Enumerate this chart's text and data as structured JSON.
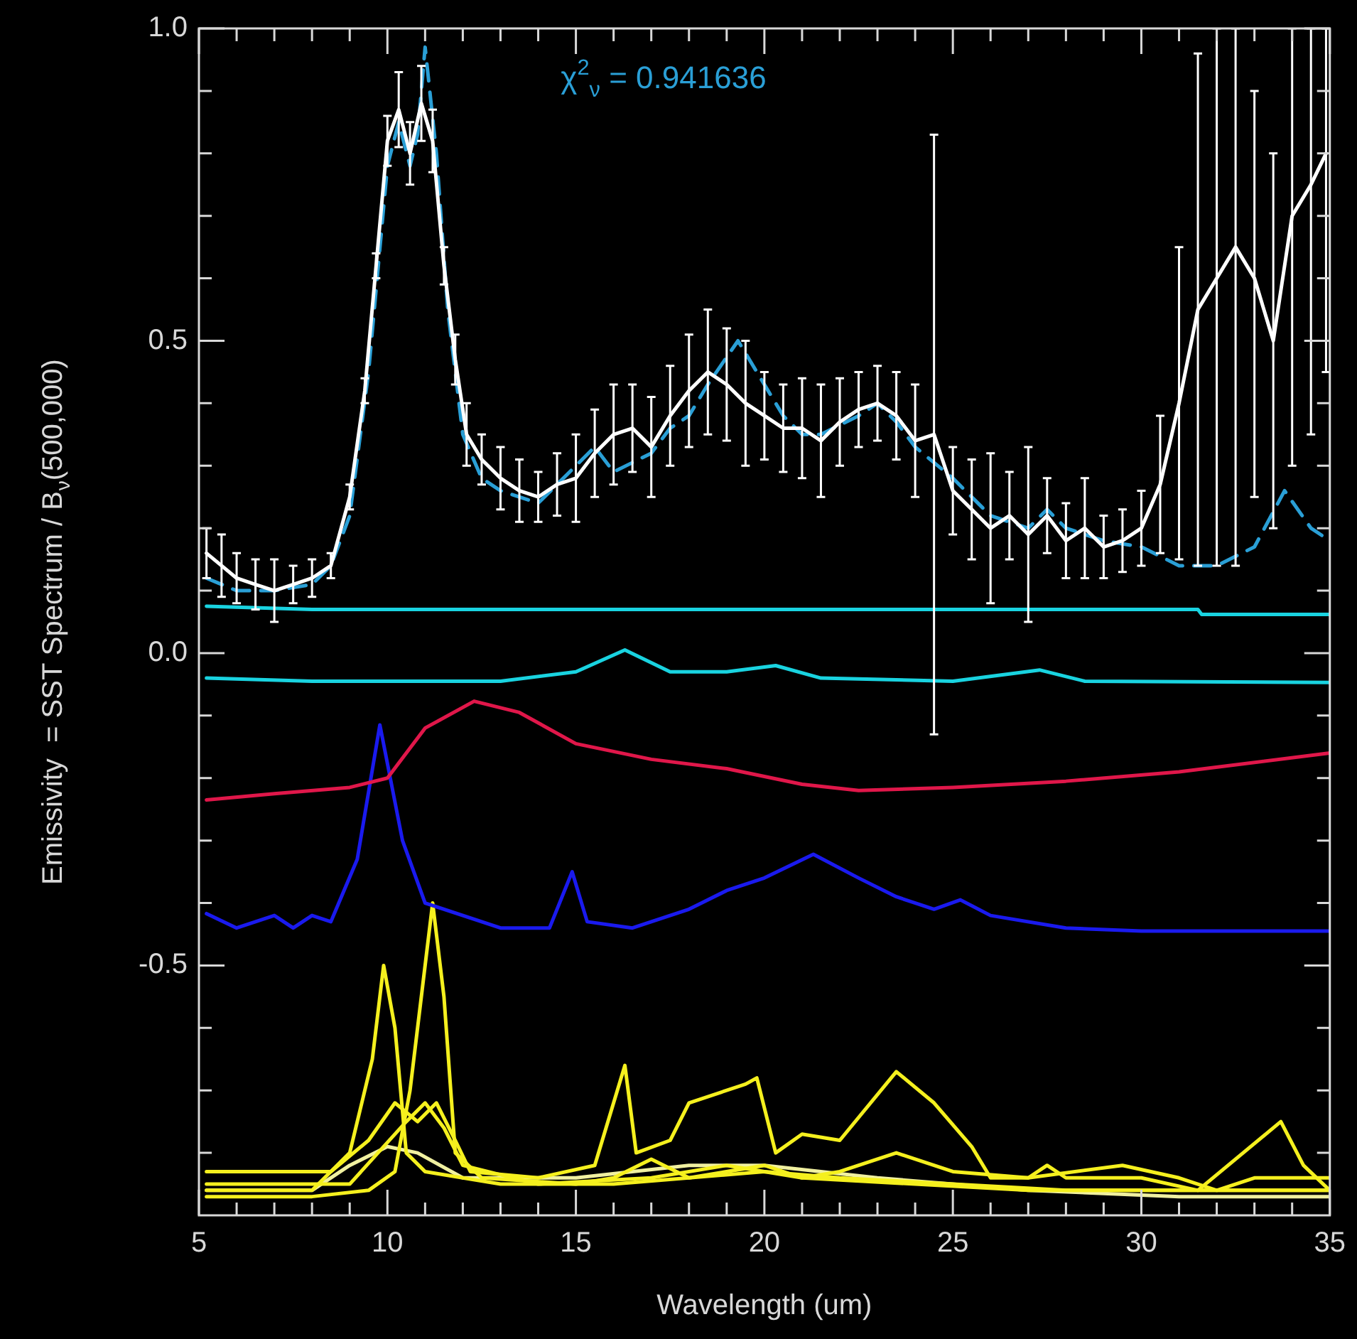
{
  "chart_data": {
    "type": "line",
    "xlabel": "Wavelength (um)",
    "ylabel": "Emissivity  = SST Spectrum / B$_{ν}$(500,000)",
    "annotations": [
      "χ$^{2}$$_{ν}$ = 0.941636"
    ],
    "xlim": [
      5,
      35
    ],
    "ylim": [
      -0.9,
      1.0
    ],
    "xticks": [
      5,
      {
        "value": 6,
        "label": null
      },
      {
        "value": 7,
        "label": null
      },
      {
        "value": 8,
        "label": null
      },
      {
        "value": 9,
        "label": null
      },
      10,
      {
        "value": 11,
        "label": null
      },
      {
        "value": 12,
        "label": null
      },
      {
        "value": 13,
        "label": null
      },
      {
        "value": 14,
        "label": null
      },
      15,
      {
        "value": 16,
        "label": null
      },
      {
        "value": 17,
        "label": null
      },
      {
        "value": 18,
        "label": null
      },
      {
        "value": 19,
        "label": null
      },
      20,
      {
        "value": 21,
        "label": null
      },
      {
        "value": 22,
        "label": null
      },
      {
        "value": 23,
        "label": null
      },
      {
        "value": 24,
        "label": null
      },
      25,
      {
        "value": 26,
        "label": null
      },
      {
        "value": 27,
        "label": null
      },
      {
        "value": 28,
        "label": null
      },
      {
        "value": 29,
        "label": null
      },
      30,
      {
        "value": 31,
        "label": null
      },
      {
        "value": 32,
        "label": null
      },
      {
        "value": 33,
        "label": null
      },
      {
        "value": 34,
        "label": null
      },
      35
    ],
    "yticks": [
      {
        "value": -0.8,
        "label": null
      },
      {
        "value": -0.7,
        "label": null
      },
      {
        "value": -0.6,
        "label": null
      },
      {
        "value": -0.5,
        "label": "-0.5"
      },
      {
        "value": -0.4,
        "label": null
      },
      {
        "value": -0.3,
        "label": null
      },
      {
        "value": -0.2,
        "label": null
      },
      {
        "value": -0.1,
        "label": null
      },
      {
        "value": 0,
        "label": "0.0"
      },
      {
        "value": 0.1,
        "label": null
      },
      {
        "value": 0.2,
        "label": null
      },
      {
        "value": 0.3,
        "label": null
      },
      {
        "value": 0.4,
        "label": null
      },
      {
        "value": 0.5,
        "label": "0.5"
      },
      {
        "value": 0.6,
        "label": null
      },
      {
        "value": 0.7,
        "label": null
      },
      {
        "value": 0.8,
        "label": null
      },
      {
        "value": 0.9,
        "label": null
      },
      {
        "value": 1,
        "label": "1.0"
      }
    ],
    "grid": false,
    "legend": false,
    "marker": "none",
    "series": [
      {
        "color": "#ffffff",
        "x": [
          5.2,
          5.6,
          6.0,
          6.5,
          7.0,
          7.5,
          8.0,
          8.5,
          9.0,
          9.4,
          9.7,
          10.0,
          10.3,
          10.6,
          10.9,
          11.2,
          11.5,
          11.8,
          12.1,
          12.5,
          13.0,
          13.5,
          14.0,
          14.5,
          15.0,
          15.5,
          16.0,
          16.5,
          17.0,
          17.5,
          18.0,
          18.5,
          19.0,
          19.5,
          20.0,
          20.5,
          21.0,
          21.5,
          22.0,
          22.5,
          23.0,
          23.5,
          24.0,
          24.5,
          25.0,
          25.5,
          26.0,
          26.5,
          27.0,
          27.5,
          28.0,
          28.5,
          29.0,
          29.5,
          30.0,
          30.5,
          31.0,
          31.5,
          32.0,
          32.5,
          33.0,
          33.5,
          34.0,
          34.5,
          34.9
        ],
        "values": [
          0.16,
          0.14,
          0.12,
          0.11,
          0.1,
          0.11,
          0.12,
          0.14,
          0.25,
          0.42,
          0.62,
          0.82,
          0.87,
          0.8,
          0.88,
          0.82,
          0.62,
          0.47,
          0.35,
          0.31,
          0.28,
          0.26,
          0.25,
          0.27,
          0.28,
          0.32,
          0.35,
          0.36,
          0.33,
          0.38,
          0.42,
          0.45,
          0.43,
          0.4,
          0.38,
          0.36,
          0.36,
          0.34,
          0.37,
          0.39,
          0.4,
          0.38,
          0.34,
          0.35,
          0.26,
          0.23,
          0.2,
          0.22,
          0.19,
          0.22,
          0.18,
          0.2,
          0.17,
          0.18,
          0.2,
          0.27,
          0.4,
          0.55,
          0.6,
          0.65,
          0.6,
          0.5,
          0.7,
          0.75,
          0.8
        ],
        "errors": [
          0.04,
          0.05,
          0.04,
          0.04,
          0.05,
          0.03,
          0.03,
          0.02,
          0.02,
          0.02,
          0.02,
          0.04,
          0.06,
          0.05,
          0.06,
          0.05,
          0.03,
          0.04,
          0.05,
          0.04,
          0.05,
          0.05,
          0.04,
          0.05,
          0.07,
          0.07,
          0.08,
          0.07,
          0.08,
          0.08,
          0.09,
          0.1,
          0.09,
          0.1,
          0.07,
          0.07,
          0.08,
          0.09,
          0.07,
          0.06,
          0.06,
          0.07,
          0.09,
          0.48,
          0.07,
          0.08,
          0.12,
          0.07,
          0.14,
          0.06,
          0.06,
          0.08,
          0.05,
          0.05,
          0.06,
          0.11,
          0.25,
          0.41,
          [
            0.14,
            1.0
          ],
          [
            0.14,
            1.0
          ],
          [
            0.25,
            0.9
          ],
          [
            0.2,
            0.8
          ],
          [
            0.3,
            1.0
          ],
          [
            0.35,
            1.0
          ],
          [
            0.45,
            1.0
          ]
        ]
      },
      {
        "color": "#2a9fd6",
        "line_style": "dashed",
        "x": [
          5.2,
          6,
          7,
          8,
          8.5,
          9,
          9.5,
          10,
          10.3,
          10.6,
          10.8,
          11.0,
          11.3,
          11.6,
          12,
          12.5,
          13,
          14,
          15,
          15.5,
          16,
          17,
          17.5,
          18,
          18.5,
          19.3,
          19.8,
          20.5,
          21,
          21.5,
          22.5,
          23,
          23.5,
          24,
          25,
          26,
          27,
          27.5,
          28,
          29,
          30,
          31,
          32,
          33,
          33.8,
          34.5,
          35
        ],
        "values": [
          0.12,
          0.1,
          0.1,
          0.11,
          0.14,
          0.22,
          0.45,
          0.78,
          0.85,
          0.78,
          0.83,
          0.97,
          0.8,
          0.55,
          0.35,
          0.28,
          0.26,
          0.24,
          0.3,
          0.33,
          0.29,
          0.32,
          0.36,
          0.38,
          0.43,
          0.5,
          0.45,
          0.38,
          0.35,
          0.35,
          0.38,
          0.4,
          0.37,
          0.33,
          0.28,
          0.22,
          0.2,
          0.23,
          0.2,
          0.18,
          0.17,
          0.14,
          0.14,
          0.17,
          0.26,
          0.2,
          0.18
        ]
      },
      {
        "color": "#19d3e0",
        "x": [
          5.2,
          8,
          31.5,
          31.6,
          35
        ],
        "values": [
          0.075,
          0.07,
          0.07,
          0.062,
          0.062
        ]
      },
      {
        "color": "#19d3e0",
        "x": [
          5.2,
          8,
          13,
          15,
          16.3,
          17.5,
          19,
          20.3,
          21.5,
          25,
          27.3,
          28.5,
          35
        ],
        "values": [
          -0.04,
          -0.045,
          -0.045,
          -0.03,
          0.005,
          -0.03,
          -0.03,
          -0.02,
          -0.04,
          -0.045,
          -0.027,
          -0.045,
          -0.047
        ]
      },
      {
        "color": "#e0174a",
        "x": [
          5.2,
          7,
          9,
          10,
          11,
          12.3,
          13.5,
          15,
          17,
          19,
          21,
          22.5,
          25,
          28,
          31,
          35
        ],
        "values": [
          -0.235,
          -0.225,
          -0.215,
          -0.2,
          -0.12,
          -0.077,
          -0.095,
          -0.145,
          -0.17,
          -0.185,
          -0.21,
          -0.22,
          -0.215,
          -0.205,
          -0.19,
          -0.16
        ]
      },
      {
        "color": "#1a1aee",
        "x": [
          5.2,
          6,
          7,
          7.5,
          8,
          8.5,
          9.2,
          9.8,
          10.4,
          11,
          13,
          14.3,
          14.9,
          15.3,
          16.5,
          18,
          19,
          20,
          21.3,
          22.5,
          23.5,
          24.5,
          25.2,
          26,
          28,
          30,
          35
        ],
        "values": [
          -0.417,
          -0.44,
          -0.42,
          -0.44,
          -0.42,
          -0.43,
          -0.33,
          -0.115,
          -0.3,
          -0.4,
          -0.44,
          -0.44,
          -0.35,
          -0.43,
          -0.44,
          -0.41,
          -0.38,
          -0.36,
          -0.322,
          -0.36,
          -0.39,
          -0.41,
          -0.395,
          -0.42,
          -0.44,
          -0.445,
          -0.445
        ]
      },
      {
        "color": "#f5f01e",
        "x": [
          5.2,
          8,
          9,
          9.6,
          9.9,
          10.2,
          10.5,
          11,
          13,
          16,
          18,
          20,
          22,
          25,
          28,
          31,
          35
        ],
        "values": [
          -0.86,
          -0.86,
          -0.8,
          -0.65,
          -0.5,
          -0.6,
          -0.8,
          -0.83,
          -0.85,
          -0.85,
          -0.84,
          -0.83,
          -0.84,
          -0.85,
          -0.86,
          -0.86,
          -0.86
        ]
      },
      {
        "color": "#f5f01e",
        "x": [
          5.2,
          8,
          9.5,
          10.2,
          10.6,
          11,
          11.2,
          11.5,
          11.8,
          12.5,
          15,
          16,
          17,
          18,
          20,
          21,
          24,
          27,
          31,
          35
        ],
        "values": [
          -0.87,
          -0.87,
          -0.86,
          -0.83,
          -0.7,
          -0.5,
          -0.4,
          -0.55,
          -0.8,
          -0.84,
          -0.85,
          -0.84,
          -0.81,
          -0.84,
          -0.82,
          -0.84,
          -0.85,
          -0.86,
          -0.86,
          -0.86
        ]
      },
      {
        "color": "#f5f01e",
        "x": [
          5.2,
          8.5,
          9.5,
          10.2,
          10.8,
          11.3,
          11.8,
          12.2,
          14,
          15.5,
          16,
          16.3,
          16.6,
          17.5,
          18,
          19.5,
          19.8,
          20.3,
          21,
          22,
          23.5,
          24.5,
          25.5,
          26,
          27,
          27.5,
          28,
          30,
          31.5,
          33.7,
          34.3,
          35
        ],
        "values": [
          -0.83,
          -0.83,
          -0.78,
          -0.72,
          -0.75,
          -0.72,
          -0.78,
          -0.83,
          -0.84,
          -0.82,
          -0.72,
          -0.66,
          -0.8,
          -0.78,
          -0.72,
          -0.69,
          -0.68,
          -0.8,
          -0.77,
          -0.78,
          -0.67,
          -0.72,
          -0.79,
          -0.84,
          -0.84,
          -0.82,
          -0.84,
          -0.84,
          -0.86,
          -0.75,
          -0.82,
          -0.86
        ]
      },
      {
        "color": "#f5f01e",
        "x": [
          5.2,
          9,
          10.5,
          11,
          11.5,
          12,
          14,
          17,
          19,
          21,
          22,
          23.5,
          25,
          27,
          29.5,
          31,
          32,
          33,
          35
        ],
        "values": [
          -0.85,
          -0.85,
          -0.75,
          -0.72,
          -0.76,
          -0.82,
          -0.85,
          -0.84,
          -0.82,
          -0.84,
          -0.83,
          -0.8,
          -0.83,
          -0.84,
          -0.82,
          -0.84,
          -0.86,
          -0.84,
          -0.84
        ]
      },
      {
        "color": "#f0f0a0",
        "x": [
          5.2,
          8,
          9,
          10,
          10.8,
          12,
          15,
          18,
          20,
          23,
          27,
          31,
          35
        ],
        "values": [
          -0.86,
          -0.86,
          -0.82,
          -0.79,
          -0.8,
          -0.84,
          -0.84,
          -0.82,
          -0.82,
          -0.84,
          -0.86,
          -0.87,
          -0.87
        ]
      }
    ]
  }
}
